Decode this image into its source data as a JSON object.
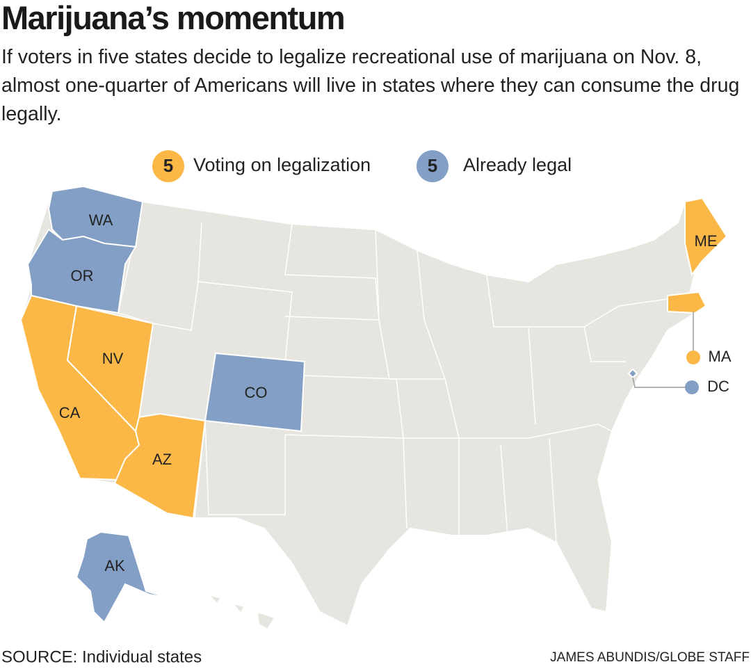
{
  "title": "Marijuana’s momentum",
  "subtitle": "If voters in five states decide to legalize recreational use of marijuana on Nov. 8, almost one-quarter of Americans will live in states where they can consume the drug legally.",
  "legend": [
    {
      "count": 5,
      "label": "Voting on legalization",
      "color": "#fbb847",
      "states": [
        "CA",
        "NV",
        "AZ",
        "ME",
        "MA"
      ]
    },
    {
      "count": 5,
      "label": "Already legal",
      "color": "#839fc6",
      "states": [
        "WA",
        "OR",
        "CO",
        "AK",
        "DC"
      ]
    }
  ],
  "source": "SOURCE: Individual states",
  "credit": "JAMES ABUNDIS/GLOBE STAFF"
}
